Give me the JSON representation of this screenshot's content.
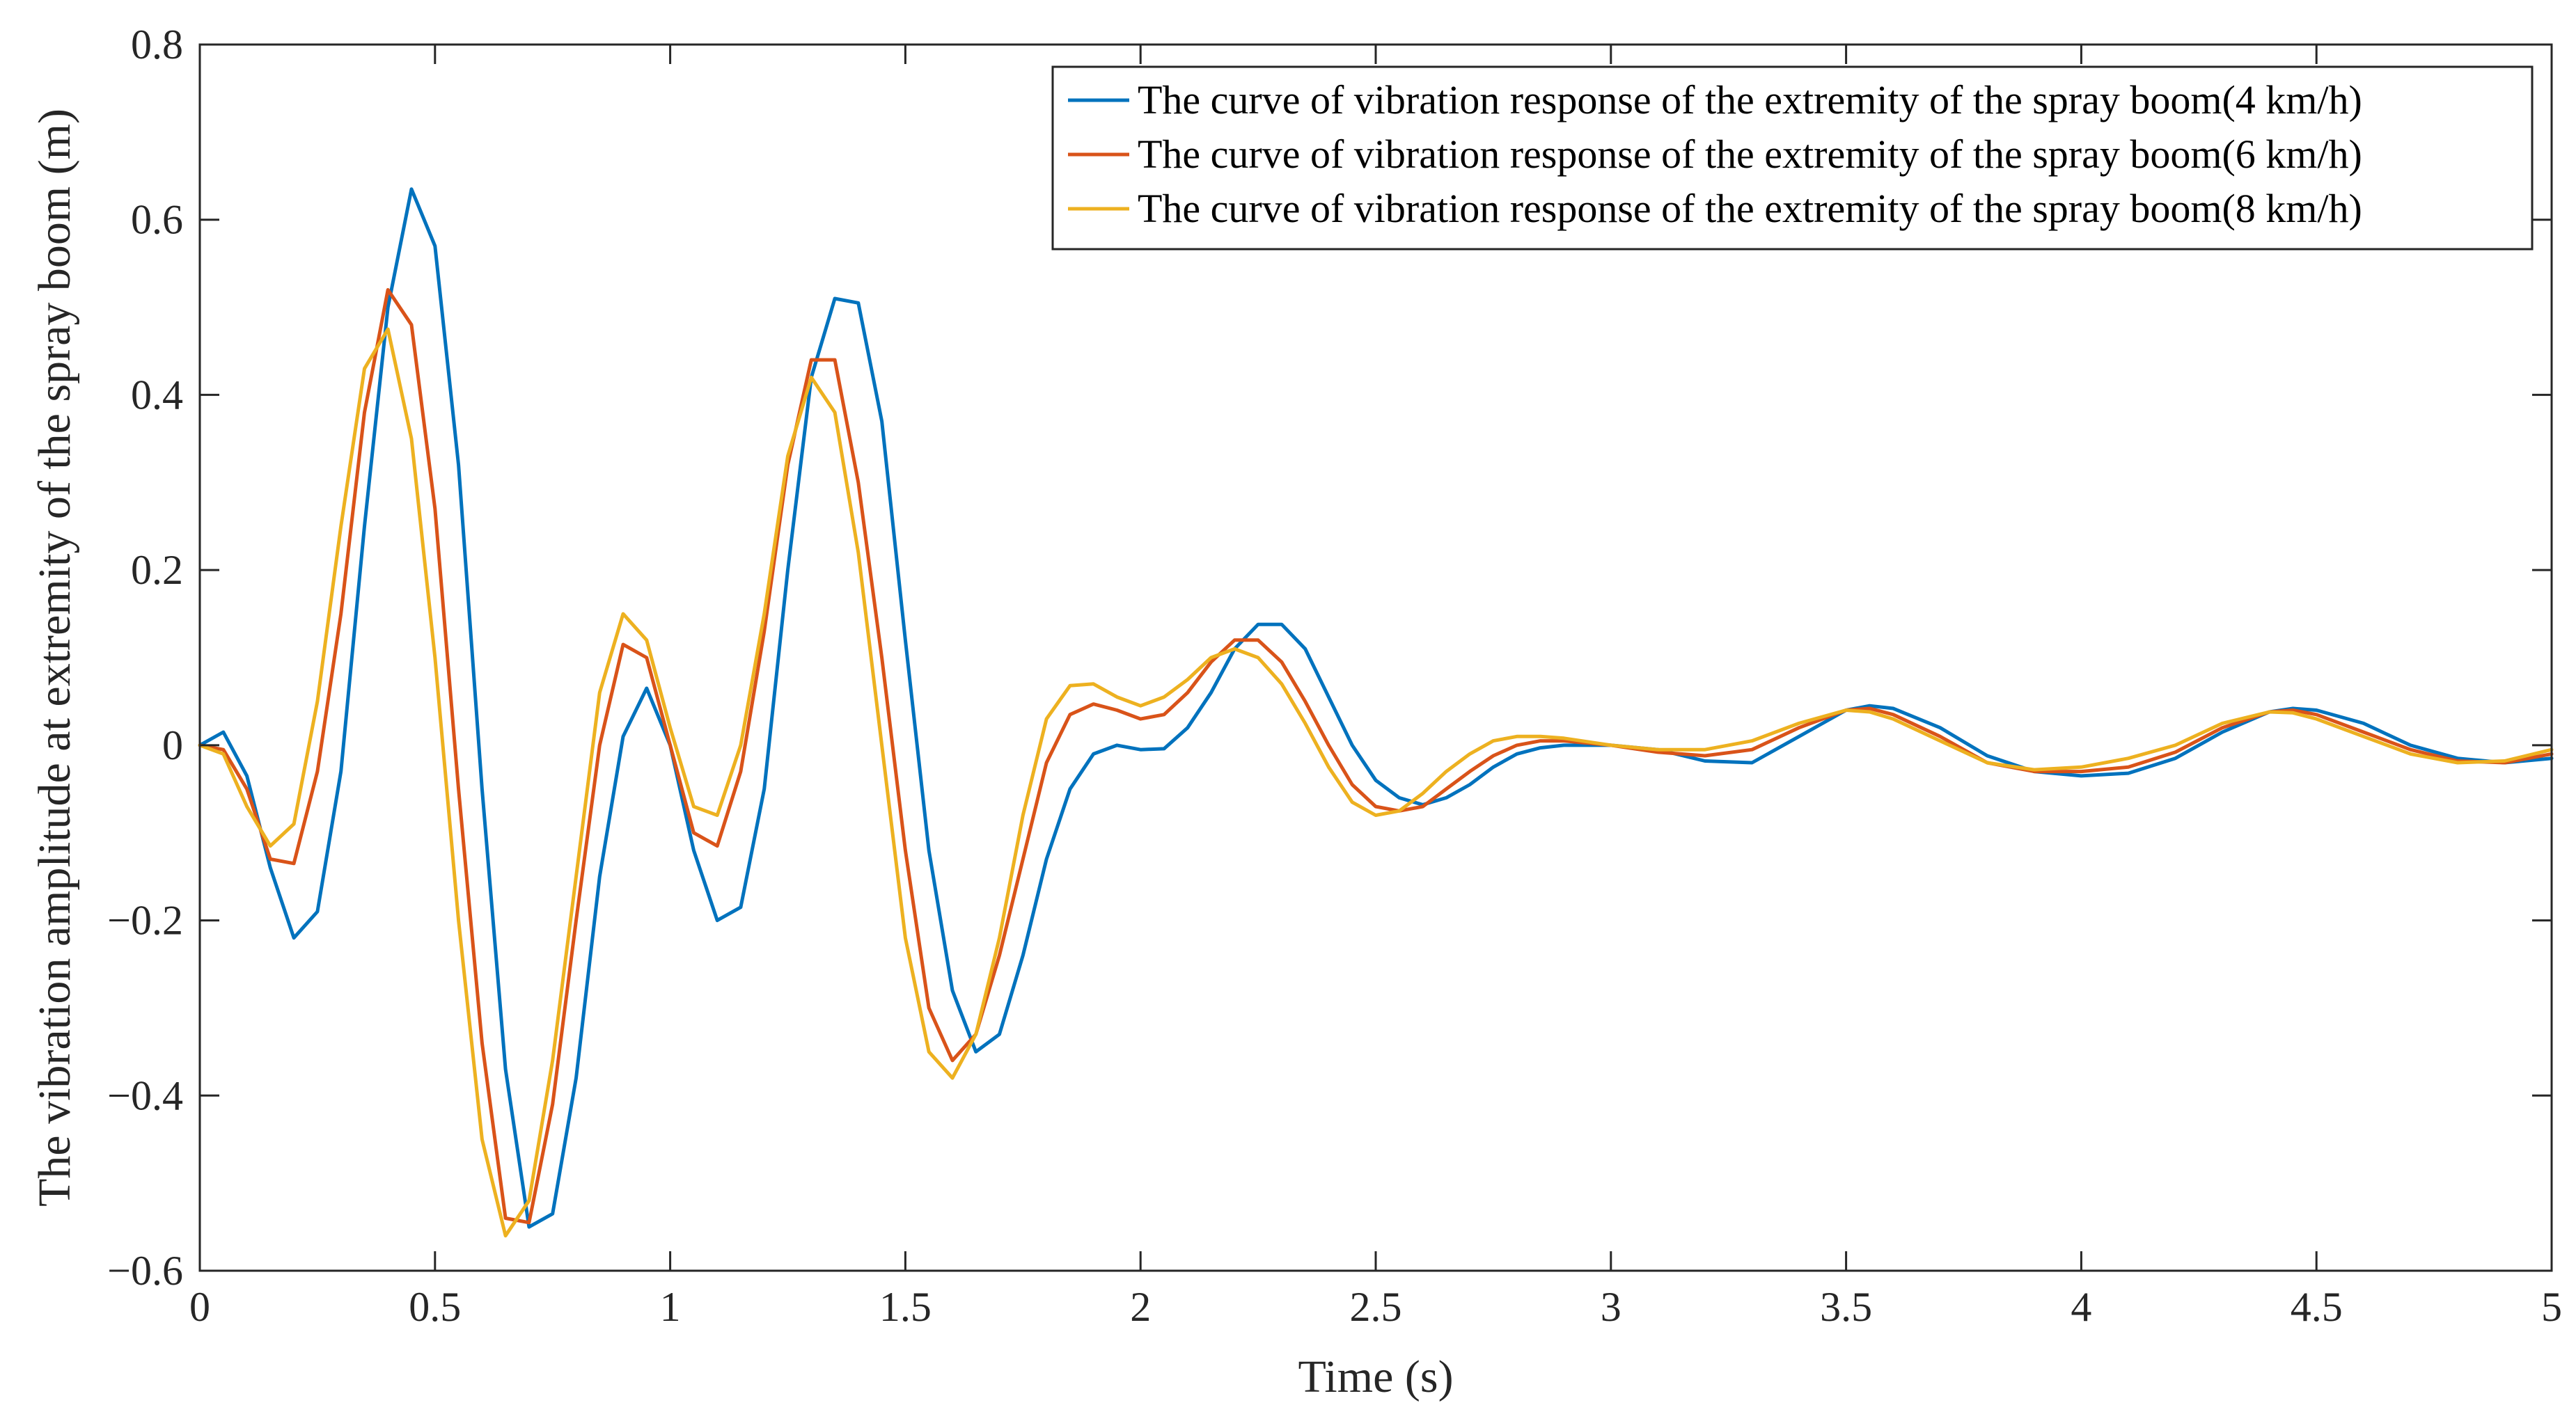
{
  "chart_data": {
    "type": "line",
    "title": "",
    "xlabel": "Time (s)",
    "ylabel": "The vibration amplitude at extremity of the spray boom (m)",
    "xlim": [
      0,
      5
    ],
    "ylim": [
      -0.6,
      0.8
    ],
    "xticks": [
      0,
      0.5,
      1,
      1.5,
      2,
      2.5,
      3,
      3.5,
      4,
      4.5,
      5
    ],
    "xtick_labels": [
      "0",
      "0.5",
      "1",
      "1.5",
      "2",
      "2.5",
      "3",
      "3.5",
      "4",
      "4.5",
      "5"
    ],
    "yticks": [
      -0.6,
      -0.4,
      -0.2,
      0,
      0.2,
      0.4,
      0.6,
      0.8
    ],
    "ytick_labels": [
      "−0.6",
      "−0.4",
      "−0.2",
      "0",
      "0.2",
      "0.4",
      "0.6",
      "0.8"
    ],
    "grid": false,
    "legend_position": "top-right",
    "series": [
      {
        "name": "The curve of vibration response of the extremity of the spray boom(4 km/h)",
        "color": "#0072BD",
        "x": [
          0,
          0.05,
          0.1,
          0.15,
          0.2,
          0.25,
          0.3,
          0.35,
          0.4,
          0.45,
          0.5,
          0.55,
          0.6,
          0.65,
          0.7,
          0.75,
          0.8,
          0.85,
          0.9,
          0.95,
          1.0,
          1.05,
          1.1,
          1.15,
          1.2,
          1.25,
          1.3,
          1.35,
          1.4,
          1.45,
          1.5,
          1.55,
          1.6,
          1.65,
          1.7,
          1.75,
          1.8,
          1.85,
          1.9,
          1.95,
          2.0,
          2.05,
          2.1,
          2.15,
          2.2,
          2.25,
          2.3,
          2.35,
          2.4,
          2.45,
          2.5,
          2.55,
          2.6,
          2.65,
          2.7,
          2.75,
          2.8,
          2.85,
          2.9,
          3.0,
          3.1,
          3.2,
          3.3,
          3.4,
          3.5,
          3.55,
          3.6,
          3.7,
          3.8,
          3.9,
          4.0,
          4.1,
          4.2,
          4.3,
          4.4,
          4.45,
          4.5,
          4.6,
          4.7,
          4.8,
          4.9,
          5.0
        ],
        "values": [
          0,
          0.015,
          -0.035,
          -0.14,
          -0.22,
          -0.19,
          -0.03,
          0.25,
          0.5,
          0.635,
          0.57,
          0.32,
          -0.05,
          -0.37,
          -0.55,
          -0.535,
          -0.38,
          -0.15,
          0.01,
          0.065,
          0.0,
          -0.12,
          -0.2,
          -0.185,
          -0.05,
          0.2,
          0.42,
          0.51,
          0.505,
          0.37,
          0.12,
          -0.12,
          -0.28,
          -0.35,
          -0.33,
          -0.24,
          -0.13,
          -0.05,
          -0.01,
          0.0,
          -0.005,
          -0.004,
          0.02,
          0.06,
          0.11,
          0.138,
          0.138,
          0.11,
          0.055,
          0.0,
          -0.04,
          -0.06,
          -0.068,
          -0.06,
          -0.045,
          -0.025,
          -0.01,
          -0.003,
          0.0,
          0.0,
          -0.005,
          -0.018,
          -0.02,
          0.01,
          0.04,
          0.045,
          0.042,
          0.02,
          -0.012,
          -0.03,
          -0.035,
          -0.032,
          -0.015,
          0.015,
          0.038,
          0.042,
          0.04,
          0.025,
          0.0,
          -0.015,
          -0.02,
          -0.015
        ]
      },
      {
        "name": "The curve of vibration response of the extremity of the spray boom(6 km/h)",
        "color": "#D95319",
        "x": [
          0,
          0.05,
          0.1,
          0.15,
          0.2,
          0.25,
          0.3,
          0.35,
          0.4,
          0.45,
          0.5,
          0.55,
          0.6,
          0.65,
          0.7,
          0.75,
          0.8,
          0.85,
          0.9,
          0.95,
          1.0,
          1.05,
          1.1,
          1.15,
          1.2,
          1.25,
          1.3,
          1.35,
          1.4,
          1.45,
          1.5,
          1.55,
          1.6,
          1.65,
          1.7,
          1.75,
          1.8,
          1.85,
          1.9,
          1.95,
          2.0,
          2.05,
          2.1,
          2.15,
          2.2,
          2.25,
          2.3,
          2.35,
          2.4,
          2.45,
          2.5,
          2.55,
          2.6,
          2.65,
          2.7,
          2.75,
          2.8,
          2.85,
          2.9,
          3.0,
          3.1,
          3.2,
          3.3,
          3.4,
          3.5,
          3.55,
          3.6,
          3.7,
          3.8,
          3.9,
          4.0,
          4.1,
          4.2,
          4.3,
          4.4,
          4.45,
          4.5,
          4.6,
          4.7,
          4.8,
          4.9,
          5.0
        ],
        "values": [
          0,
          -0.005,
          -0.05,
          -0.13,
          -0.135,
          -0.03,
          0.15,
          0.38,
          0.52,
          0.48,
          0.27,
          -0.05,
          -0.34,
          -0.54,
          -0.545,
          -0.41,
          -0.2,
          0.0,
          0.115,
          0.1,
          0.0,
          -0.1,
          -0.115,
          -0.03,
          0.13,
          0.32,
          0.44,
          0.44,
          0.3,
          0.1,
          -0.12,
          -0.3,
          -0.36,
          -0.33,
          -0.24,
          -0.13,
          -0.02,
          0.035,
          0.047,
          0.04,
          0.03,
          0.035,
          0.06,
          0.095,
          0.12,
          0.12,
          0.095,
          0.05,
          0.0,
          -0.045,
          -0.07,
          -0.075,
          -0.07,
          -0.05,
          -0.03,
          -0.012,
          0.0,
          0.005,
          0.005,
          0.0,
          -0.008,
          -0.012,
          -0.005,
          0.02,
          0.04,
          0.042,
          0.035,
          0.01,
          -0.02,
          -0.03,
          -0.03,
          -0.025,
          -0.008,
          0.02,
          0.038,
          0.04,
          0.035,
          0.015,
          -0.005,
          -0.018,
          -0.02,
          -0.01
        ]
      },
      {
        "name": "The curve of vibration response of the extremity of the spray boom(8 km/h)",
        "color": "#EDB120",
        "x": [
          0,
          0.05,
          0.1,
          0.15,
          0.2,
          0.25,
          0.3,
          0.35,
          0.4,
          0.45,
          0.5,
          0.55,
          0.6,
          0.65,
          0.7,
          0.75,
          0.8,
          0.85,
          0.9,
          0.95,
          1.0,
          1.05,
          1.1,
          1.15,
          1.2,
          1.25,
          1.3,
          1.35,
          1.4,
          1.45,
          1.5,
          1.55,
          1.6,
          1.65,
          1.7,
          1.75,
          1.8,
          1.85,
          1.9,
          1.95,
          2.0,
          2.05,
          2.1,
          2.15,
          2.2,
          2.25,
          2.3,
          2.35,
          2.4,
          2.45,
          2.5,
          2.55,
          2.6,
          2.65,
          2.7,
          2.75,
          2.8,
          2.85,
          2.9,
          3.0,
          3.1,
          3.2,
          3.3,
          3.4,
          3.5,
          3.55,
          3.6,
          3.7,
          3.8,
          3.9,
          4.0,
          4.1,
          4.2,
          4.3,
          4.4,
          4.45,
          4.5,
          4.6,
          4.7,
          4.8,
          4.9,
          5.0
        ],
        "values": [
          0,
          -0.01,
          -0.07,
          -0.115,
          -0.09,
          0.05,
          0.25,
          0.43,
          0.475,
          0.35,
          0.1,
          -0.2,
          -0.45,
          -0.56,
          -0.52,
          -0.36,
          -0.15,
          0.06,
          0.15,
          0.12,
          0.02,
          -0.07,
          -0.08,
          0.0,
          0.15,
          0.33,
          0.42,
          0.38,
          0.22,
          0.0,
          -0.22,
          -0.35,
          -0.38,
          -0.33,
          -0.22,
          -0.08,
          0.03,
          0.068,
          0.07,
          0.055,
          0.045,
          0.055,
          0.075,
          0.1,
          0.11,
          0.1,
          0.07,
          0.025,
          -0.025,
          -0.065,
          -0.08,
          -0.075,
          -0.055,
          -0.03,
          -0.01,
          0.005,
          0.01,
          0.01,
          0.008,
          0.0,
          -0.005,
          -0.005,
          0.005,
          0.025,
          0.04,
          0.038,
          0.03,
          0.005,
          -0.02,
          -0.028,
          -0.025,
          -0.015,
          0.0,
          0.025,
          0.038,
          0.037,
          0.03,
          0.01,
          -0.01,
          -0.02,
          -0.018,
          -0.005
        ]
      }
    ]
  }
}
